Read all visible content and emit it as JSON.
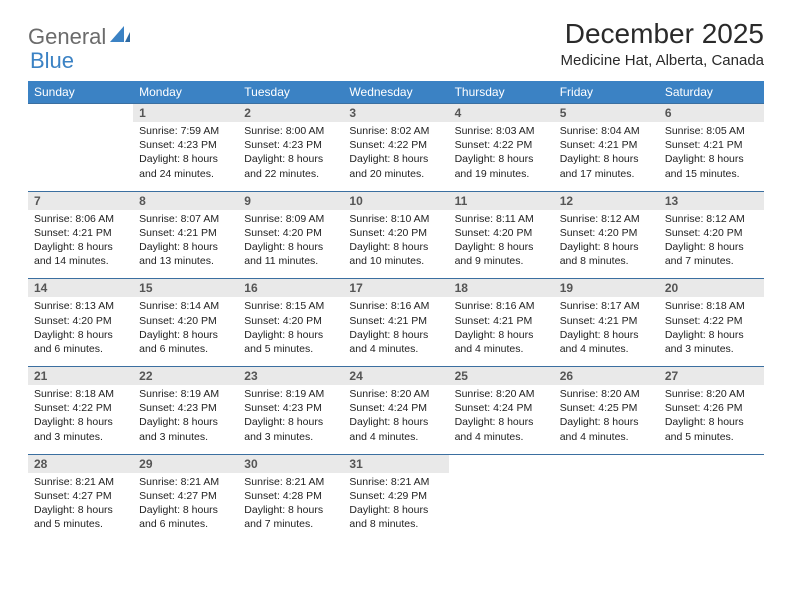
{
  "logo": {
    "word1": "General",
    "word2": "Blue",
    "shape_color": "#3b82c4"
  },
  "title": "December 2025",
  "location": "Medicine Hat, Alberta, Canada",
  "colors": {
    "header_bg": "#3b82c4",
    "header_text": "#ffffff",
    "daybar_bg": "#e9e9e9",
    "daybar_border": "#3b6fa0",
    "body_text": "#222222"
  },
  "typography": {
    "title_fontsize": 28,
    "location_fontsize": 15,
    "dayhead_fontsize": 12,
    "cell_fontsize": 10.5
  },
  "weekdays": [
    "Sunday",
    "Monday",
    "Tuesday",
    "Wednesday",
    "Thursday",
    "Friday",
    "Saturday"
  ],
  "weeks": [
    [
      null,
      {
        "n": "1",
        "sunrise": "7:59 AM",
        "sunset": "4:23 PM",
        "daylight": "8 hours and 24 minutes."
      },
      {
        "n": "2",
        "sunrise": "8:00 AM",
        "sunset": "4:23 PM",
        "daylight": "8 hours and 22 minutes."
      },
      {
        "n": "3",
        "sunrise": "8:02 AM",
        "sunset": "4:22 PM",
        "daylight": "8 hours and 20 minutes."
      },
      {
        "n": "4",
        "sunrise": "8:03 AM",
        "sunset": "4:22 PM",
        "daylight": "8 hours and 19 minutes."
      },
      {
        "n": "5",
        "sunrise": "8:04 AM",
        "sunset": "4:21 PM",
        "daylight": "8 hours and 17 minutes."
      },
      {
        "n": "6",
        "sunrise": "8:05 AM",
        "sunset": "4:21 PM",
        "daylight": "8 hours and 15 minutes."
      }
    ],
    [
      {
        "n": "7",
        "sunrise": "8:06 AM",
        "sunset": "4:21 PM",
        "daylight": "8 hours and 14 minutes."
      },
      {
        "n": "8",
        "sunrise": "8:07 AM",
        "sunset": "4:21 PM",
        "daylight": "8 hours and 13 minutes."
      },
      {
        "n": "9",
        "sunrise": "8:09 AM",
        "sunset": "4:20 PM",
        "daylight": "8 hours and 11 minutes."
      },
      {
        "n": "10",
        "sunrise": "8:10 AM",
        "sunset": "4:20 PM",
        "daylight": "8 hours and 10 minutes."
      },
      {
        "n": "11",
        "sunrise": "8:11 AM",
        "sunset": "4:20 PM",
        "daylight": "8 hours and 9 minutes."
      },
      {
        "n": "12",
        "sunrise": "8:12 AM",
        "sunset": "4:20 PM",
        "daylight": "8 hours and 8 minutes."
      },
      {
        "n": "13",
        "sunrise": "8:12 AM",
        "sunset": "4:20 PM",
        "daylight": "8 hours and 7 minutes."
      }
    ],
    [
      {
        "n": "14",
        "sunrise": "8:13 AM",
        "sunset": "4:20 PM",
        "daylight": "8 hours and 6 minutes."
      },
      {
        "n": "15",
        "sunrise": "8:14 AM",
        "sunset": "4:20 PM",
        "daylight": "8 hours and 6 minutes."
      },
      {
        "n": "16",
        "sunrise": "8:15 AM",
        "sunset": "4:20 PM",
        "daylight": "8 hours and 5 minutes."
      },
      {
        "n": "17",
        "sunrise": "8:16 AM",
        "sunset": "4:21 PM",
        "daylight": "8 hours and 4 minutes."
      },
      {
        "n": "18",
        "sunrise": "8:16 AM",
        "sunset": "4:21 PM",
        "daylight": "8 hours and 4 minutes."
      },
      {
        "n": "19",
        "sunrise": "8:17 AM",
        "sunset": "4:21 PM",
        "daylight": "8 hours and 4 minutes."
      },
      {
        "n": "20",
        "sunrise": "8:18 AM",
        "sunset": "4:22 PM",
        "daylight": "8 hours and 3 minutes."
      }
    ],
    [
      {
        "n": "21",
        "sunrise": "8:18 AM",
        "sunset": "4:22 PM",
        "daylight": "8 hours and 3 minutes."
      },
      {
        "n": "22",
        "sunrise": "8:19 AM",
        "sunset": "4:23 PM",
        "daylight": "8 hours and 3 minutes."
      },
      {
        "n": "23",
        "sunrise": "8:19 AM",
        "sunset": "4:23 PM",
        "daylight": "8 hours and 3 minutes."
      },
      {
        "n": "24",
        "sunrise": "8:20 AM",
        "sunset": "4:24 PM",
        "daylight": "8 hours and 4 minutes."
      },
      {
        "n": "25",
        "sunrise": "8:20 AM",
        "sunset": "4:24 PM",
        "daylight": "8 hours and 4 minutes."
      },
      {
        "n": "26",
        "sunrise": "8:20 AM",
        "sunset": "4:25 PM",
        "daylight": "8 hours and 4 minutes."
      },
      {
        "n": "27",
        "sunrise": "8:20 AM",
        "sunset": "4:26 PM",
        "daylight": "8 hours and 5 minutes."
      }
    ],
    [
      {
        "n": "28",
        "sunrise": "8:21 AM",
        "sunset": "4:27 PM",
        "daylight": "8 hours and 5 minutes."
      },
      {
        "n": "29",
        "sunrise": "8:21 AM",
        "sunset": "4:27 PM",
        "daylight": "8 hours and 6 minutes."
      },
      {
        "n": "30",
        "sunrise": "8:21 AM",
        "sunset": "4:28 PM",
        "daylight": "8 hours and 7 minutes."
      },
      {
        "n": "31",
        "sunrise": "8:21 AM",
        "sunset": "4:29 PM",
        "daylight": "8 hours and 8 minutes."
      },
      null,
      null,
      null
    ]
  ],
  "labels": {
    "sunrise": "Sunrise:",
    "sunset": "Sunset:",
    "daylight": "Daylight:"
  }
}
